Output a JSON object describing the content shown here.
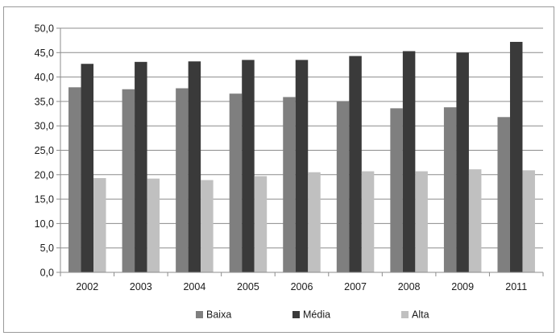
{
  "chart_data": {
    "type": "bar",
    "categories": [
      "2002",
      "2003",
      "2004",
      "2005",
      "2006",
      "2007",
      "2008",
      "2009",
      "2011"
    ],
    "series": [
      {
        "name": "Baixa",
        "color": "#7f7f7f",
        "values": [
          37.9,
          37.5,
          37.7,
          36.6,
          35.9,
          35.0,
          33.6,
          33.8,
          31.8
        ]
      },
      {
        "name": "Média",
        "color": "#3a3a3a",
        "values": [
          42.7,
          43.1,
          43.2,
          43.5,
          43.5,
          44.3,
          45.3,
          45.0,
          47.2
        ]
      },
      {
        "name": "Alta",
        "color": "#c0c0c0",
        "values": [
          19.3,
          19.2,
          18.9,
          19.7,
          20.5,
          20.7,
          20.7,
          21.1,
          20.9
        ]
      }
    ],
    "yticks": [
      "0,0",
      "5,0",
      "10,0",
      "15,0",
      "20,0",
      "25,0",
      "30,0",
      "35,0",
      "40,0",
      "45,0",
      "50,0"
    ],
    "ylim": [
      0,
      50
    ],
    "ytick_step": 5,
    "grid": true,
    "legend_position": "bottom",
    "title": "",
    "xlabel": "",
    "ylabel": ""
  }
}
